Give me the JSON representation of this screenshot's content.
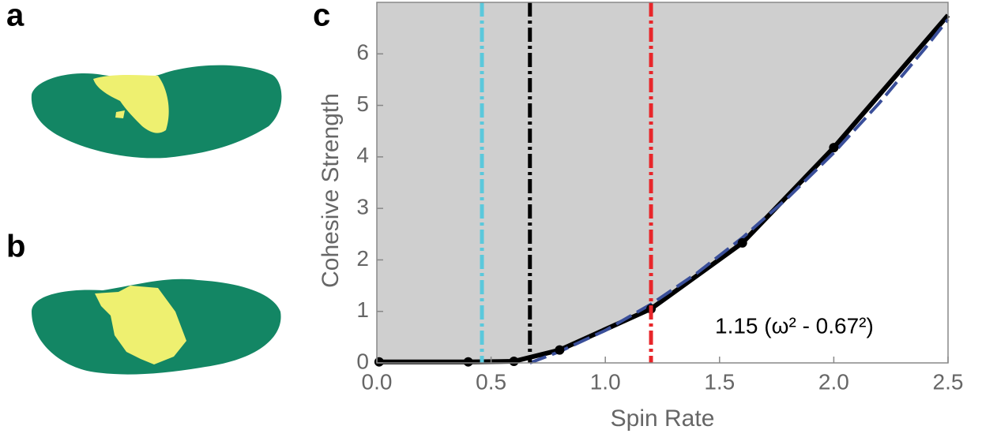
{
  "panel_labels": [
    "a",
    "b"
  ],
  "chart_data": {
    "type": "line",
    "panel_label": "c",
    "x_label": "Spin Rate",
    "y_label": "Cohesive Strength",
    "xlim": [
      0,
      2.5
    ],
    "ylim": [
      0,
      7
    ],
    "xticks": [
      {
        "value": 0,
        "label": "0.0"
      },
      0.5,
      {
        "value": 1,
        "label": "1.0"
      },
      1.5,
      {
        "value": 2,
        "label": "2.0"
      },
      2.5
    ],
    "yticks": [
      0,
      1,
      2,
      3,
      4,
      5,
      6
    ],
    "vlines": [
      {
        "value": 0.46,
        "color": "#5bc8dc"
      },
      {
        "value": 0.67,
        "color": "#000000"
      },
      {
        "value": 1.2,
        "color": "#e8262a"
      }
    ],
    "annotation": "1.15 (ω² -  0.67²)",
    "series": [
      {
        "color": "#000000",
        "x": [
          0.01,
          0.4,
          0.6,
          0.8,
          1.2,
          1.6,
          2.0,
          2.5
        ],
        "values": [
          0.02,
          0.02,
          0.03,
          0.25,
          1.05,
          2.33,
          4.18,
          6.75
        ]
      },
      {
        "color": "#3a4f9a",
        "dashed": true,
        "x": [
          0.67,
          0.8,
          1.0,
          1.2,
          1.4,
          1.6,
          1.8,
          2.0,
          2.2,
          2.4,
          2.5
        ],
        "values": [
          0,
          0.22,
          0.63,
          1.14,
          1.74,
          2.43,
          3.21,
          4.08,
          5.05,
          6.11,
          6.67
        ]
      }
    ]
  }
}
